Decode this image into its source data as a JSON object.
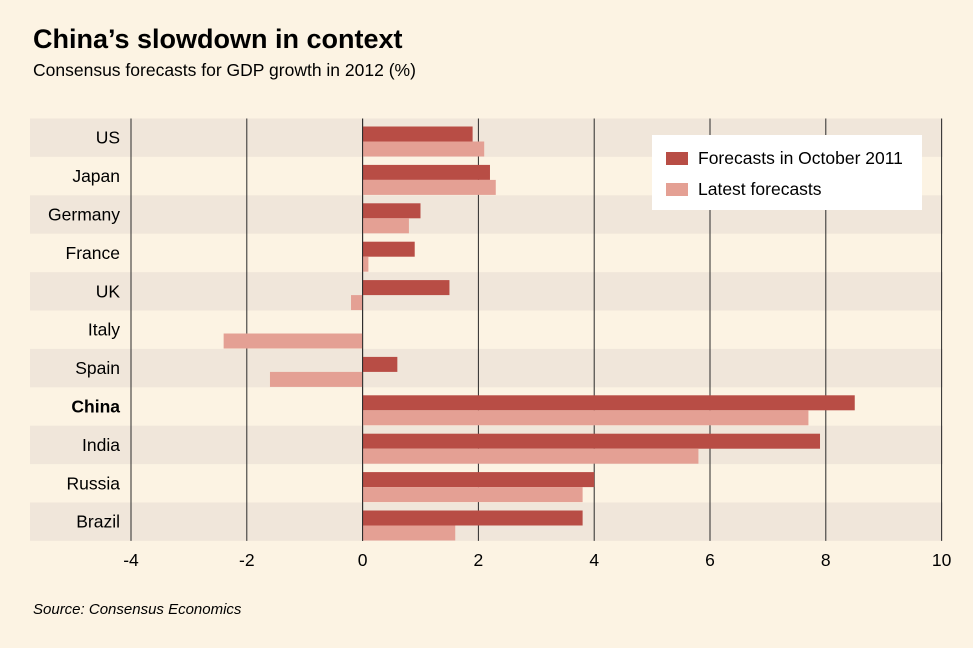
{
  "header": {
    "title": "China’s slowdown in context",
    "subtitle": "Consensus forecasts for GDP growth in 2012 (%)"
  },
  "footer": {
    "source": "Source: Consensus Economics"
  },
  "colors": {
    "background": "#fcf3e3",
    "band": "#f0e6da",
    "series_1": "#b84d45",
    "series_2": "#e4a094",
    "legend_box": "#ffffff"
  },
  "chart_data": {
    "type": "bar",
    "orientation": "horizontal",
    "categories": [
      "US",
      "Japan",
      "Germany",
      "France",
      "UK",
      "Italy",
      "Spain",
      "China",
      "India",
      "Russia",
      "Brazil"
    ],
    "highlighted_category": "China",
    "series": [
      {
        "name": "Forecasts in October 2011",
        "values": [
          1.9,
          2.2,
          1.0,
          0.9,
          1.5,
          0.0,
          0.6,
          8.5,
          7.9,
          4.0,
          3.8
        ]
      },
      {
        "name": "Latest forecasts",
        "values": [
          2.1,
          2.3,
          0.8,
          0.1,
          -0.2,
          -2.4,
          -1.6,
          7.7,
          5.8,
          3.8,
          1.6
        ]
      }
    ],
    "xlim": [
      -4,
      10
    ],
    "xticks": [
      -4,
      -2,
      0,
      2,
      4,
      6,
      8,
      10
    ],
    "xticklabels": [
      "-4",
      "-2",
      "0",
      "2",
      "4",
      "6",
      "8",
      "10"
    ],
    "grid": "vertical",
    "legend_position": "top-right"
  }
}
